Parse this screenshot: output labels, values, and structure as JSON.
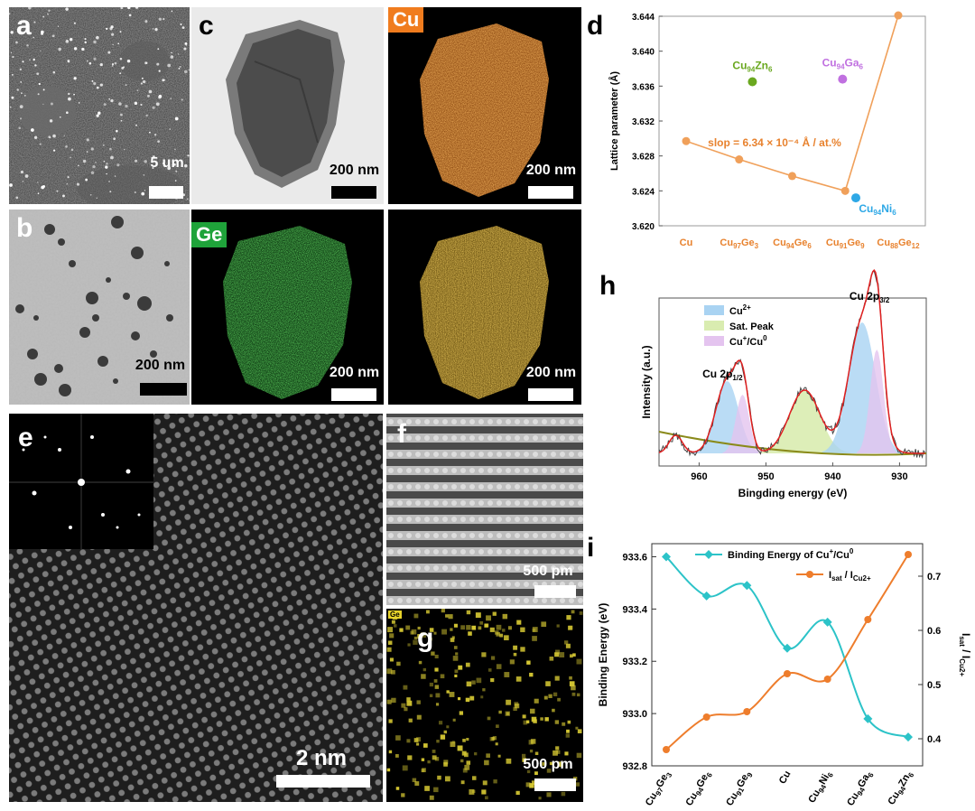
{
  "panels": {
    "a": {
      "label": "a",
      "scale": "5 um"
    },
    "b": {
      "label": "b",
      "scale": "200 nm"
    },
    "c": {
      "label": "c",
      "scale": "200 nm"
    },
    "c_cu": {
      "label": "Cu",
      "scale": "200 nm",
      "color": "#f07c1e"
    },
    "c_ge": {
      "label": "Ge",
      "scale": "200 nm",
      "color": "#1fa33a"
    },
    "c_overlay": {
      "scale": "200 nm"
    },
    "d": {
      "label": "d"
    },
    "e": {
      "label": "e",
      "scale": "2 nm"
    },
    "f": {
      "label": "f",
      "scale": "500 pm"
    },
    "g": {
      "label": "g",
      "scale": "500 pm",
      "tag": "Ge"
    },
    "h": {
      "label": "h"
    },
    "i": {
      "label": "i"
    }
  },
  "chart_data": [
    {
      "panel": "d",
      "type": "line",
      "ylabel": "Lattice parameter (Å)",
      "ylim": [
        3.62,
        3.644
      ],
      "yticks": [
        "3.620",
        "3.624",
        "3.628",
        "3.632",
        "3.636",
        "3.640",
        "3.644"
      ],
      "categories": [
        "Cu",
        "Cu97Ge3",
        "Cu94Ge6",
        "Cu91Ge9",
        "Cu88Ge12"
      ],
      "category_labels": [
        {
          "base": "Cu",
          "sub": ""
        },
        {
          "base": "Cu",
          "sub": "97",
          "tail": "Ge",
          "tail_sub": "3"
        },
        {
          "base": "Cu",
          "sub": "94",
          "tail": "Ge",
          "tail_sub": "6"
        },
        {
          "base": "Cu",
          "sub": "91",
          "tail": "Ge",
          "tail_sub": "9"
        },
        {
          "base": "Cu",
          "sub": "88",
          "tail": "Ge",
          "tail_sub": "12"
        }
      ],
      "series": [
        {
          "values": [
            3.6297,
            3.6276,
            3.6257,
            3.624,
            3.6441
          ],
          "color": "#f0a05a"
        }
      ],
      "points": [
        {
          "label": "Cu94Zn6",
          "x": 1.25,
          "y": 3.6365,
          "color": "#6aa820"
        },
        {
          "label": "Cu94Ga6",
          "x": 2.95,
          "y": 3.6368,
          "color": "#c070e0"
        },
        {
          "label": "Cu94Ni6",
          "x": 3.2,
          "y": 3.6232,
          "color": "#2ea8e6"
        }
      ],
      "annotation": "slop = 6.34 × 10⁻⁴ Å / at.%"
    },
    {
      "panel": "h",
      "type": "line",
      "xlabel": "Bingding energy (eV)",
      "ylabel": "Intensity (a.u.)",
      "xlim": [
        966,
        926
      ],
      "xticks": [
        960,
        950,
        940,
        930
      ],
      "legend": [
        {
          "label": "Cu2+",
          "color": "#a9d3f2"
        },
        {
          "label": "Sat. Peak",
          "color": "#d9ecb0"
        },
        {
          "label": "Cu+/Cu0",
          "color": "#e4c4ef"
        }
      ],
      "annotations": [
        "Cu 2p1/2",
        "Cu 2p3/2"
      ]
    },
    {
      "panel": "i",
      "type": "line",
      "ylabel_left": "Binding Energy (eV)",
      "ylabel_right": "Isat / ICu2+",
      "ylim_left": [
        932.8,
        933.65
      ],
      "ylim_right": [
        0.35,
        0.76
      ],
      "yticks_left": [
        "932.8",
        "933.0",
        "933.2",
        "933.4",
        "933.6"
      ],
      "yticks_right": [
        "0.4",
        "0.5",
        "0.6",
        "0.7"
      ],
      "categories": [
        "Cu97Ge3",
        "Cu94Ge6",
        "Cu91Ge9",
        "Cu",
        "Cu94Ni6",
        "Cu94Ga6",
        "Cu94Zn6"
      ],
      "series": [
        {
          "name": "Binding Energy of Cu+/Cu0",
          "axis": "left",
          "color": "#2cc3c8",
          "values": [
            933.6,
            933.45,
            933.49,
            933.25,
            933.35,
            932.98,
            932.91
          ]
        },
        {
          "name": "Isat / ICu2+",
          "axis": "right",
          "color": "#ee7d2c",
          "values": [
            0.38,
            0.44,
            0.45,
            0.52,
            0.51,
            0.62,
            0.74
          ]
        }
      ]
    }
  ]
}
